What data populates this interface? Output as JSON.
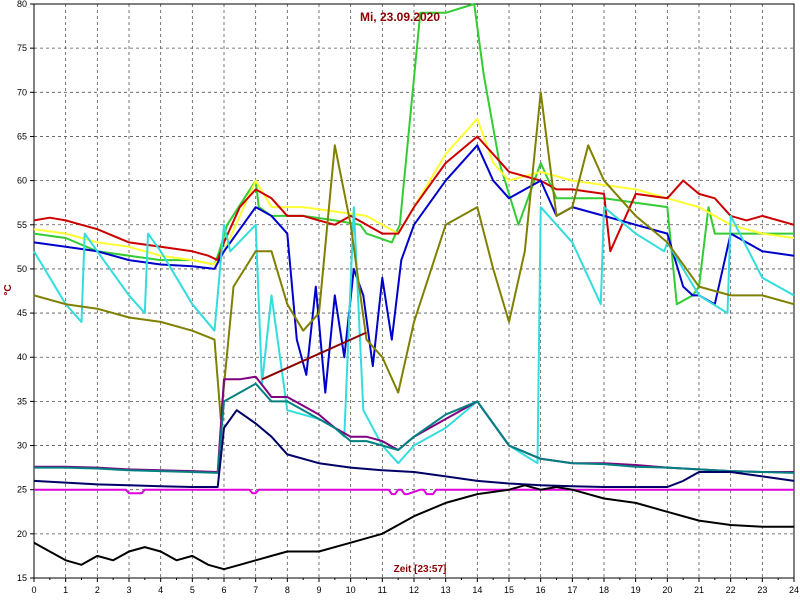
{
  "chart_data": {
    "type": "line",
    "title": "Mi, 23.09.2020",
    "xlabel": "Zeit [23:57]",
    "ylabel": "°C",
    "xlim": [
      0,
      24
    ],
    "ylim": [
      15,
      80
    ],
    "grid": true,
    "x_ticks": [
      "0",
      "1",
      "2",
      "3",
      "4",
      "5",
      "6",
      "7",
      "8",
      "9",
      "10",
      "11",
      "12",
      "13",
      "14",
      "15",
      "16",
      "17",
      "18",
      "19",
      "20",
      "21",
      "22",
      "23",
      "24"
    ],
    "y_ticks": [
      "15",
      "20",
      "25",
      "30",
      "35",
      "40",
      "45",
      "50",
      "55",
      "60",
      "65",
      "70",
      "75",
      "80"
    ],
    "colors": {
      "green": "#33cc33",
      "yellow": "#ffff33",
      "red": "#cc0000",
      "blue": "#0000cc",
      "cyan": "#33dddd",
      "olive": "#808000",
      "purple": "#800080",
      "teal": "#008080",
      "navy": "#000066",
      "magenta": "#dd00dd",
      "black": "#000000",
      "darkred": "#8b0000"
    },
    "series": [
      {
        "color": "#33cc33",
        "x": [
          0,
          1,
          2,
          3,
          4,
          5,
          5.7,
          5.85,
          6.1,
          7.0,
          7.1,
          7.5,
          8.5,
          9.5,
          10.3,
          10.5,
          11.3,
          11.55,
          12.2,
          13,
          13.9,
          14.2,
          14.7,
          15.3,
          16,
          16.5,
          17,
          18,
          19,
          20,
          20.3,
          20.8,
          21,
          21.3,
          21.5,
          22,
          23,
          24
        ],
        "y": [
          54,
          53.5,
          52,
          51.5,
          51,
          51,
          50.5,
          52,
          55,
          60,
          57,
          56,
          56,
          55.5,
          55,
          54,
          53,
          55,
          79,
          79,
          80,
          72,
          62,
          55,
          62,
          58,
          58,
          58,
          57.5,
          57,
          46,
          47,
          48,
          57,
          54,
          54,
          54,
          54
        ]
      },
      {
        "color": "#ffff33",
        "x": [
          0,
          1,
          2,
          3,
          4,
          5,
          5.7,
          6,
          7,
          7.5,
          8.5,
          9.5,
          10.5,
          11,
          11.5,
          12,
          13,
          14,
          14.5,
          15,
          16,
          17,
          18,
          19,
          20,
          21,
          22,
          23,
          24
        ],
        "y": [
          54.5,
          54,
          53,
          52.5,
          51.5,
          51,
          50.5,
          52,
          60,
          57,
          57,
          56.5,
          56,
          55,
          54,
          57,
          63,
          67,
          62,
          60,
          61,
          60,
          59.5,
          59,
          58,
          57,
          55,
          54,
          53.5
        ]
      },
      {
        "color": "#cc0000",
        "x": [
          0,
          0.5,
          1,
          1.5,
          2,
          3,
          4,
          5,
          5.5,
          5.8,
          6,
          6.5,
          7,
          7.5,
          8,
          8.5,
          9,
          9.5,
          10,
          10.5,
          11,
          11.5,
          12,
          13,
          14,
          15,
          16,
          16.5,
          17,
          18,
          18.2,
          19,
          20,
          20.5,
          21,
          21.5,
          22,
          22.5,
          23,
          24
        ],
        "y": [
          55.5,
          55.8,
          55.5,
          55,
          54.5,
          53,
          52.5,
          52,
          51.5,
          51,
          53,
          57,
          59,
          58,
          56,
          56,
          55.5,
          55,
          56,
          55,
          54,
          54,
          57,
          62,
          65,
          61,
          60,
          59,
          59,
          58.5,
          52,
          58.5,
          58,
          60,
          58.5,
          58,
          56,
          55.5,
          56,
          55
        ]
      },
      {
        "color": "#0000cc",
        "x": [
          0,
          1,
          2,
          3,
          4,
          5,
          5.7,
          6,
          7,
          7.5,
          8,
          8.3,
          8.6,
          8.9,
          9.2,
          9.5,
          9.8,
          10.1,
          10.4,
          10.7,
          11,
          11.3,
          11.6,
          12,
          13,
          14,
          14.5,
          15,
          16,
          16.5,
          17,
          18,
          19,
          20,
          20.5,
          20.8,
          21,
          21.5,
          22,
          22.5,
          23,
          24
        ],
        "y": [
          53,
          52.5,
          52,
          51,
          50.5,
          50.3,
          50,
          52,
          57,
          56,
          54,
          42,
          38,
          48,
          36,
          47,
          40,
          50,
          47,
          39,
          49,
          42,
          51,
          55,
          60,
          64,
          60,
          58,
          60,
          56,
          57,
          56,
          55,
          54,
          48,
          47,
          47,
          46,
          54,
          53,
          52,
          51.5
        ]
      },
      {
        "color": "#33dddd",
        "x": [
          0,
          1,
          1.5,
          1.6,
          2,
          3,
          3.5,
          3.6,
          4,
          5,
          5.7,
          6,
          6.2,
          7,
          7.2,
          7.5,
          8,
          9,
          9.5,
          9.8,
          10.1,
          10.4,
          11,
          11.5,
          12,
          13,
          14,
          15,
          15.9,
          16,
          17,
          17.9,
          18,
          19,
          19.9,
          20,
          21,
          21.9,
          22,
          23,
          24
        ],
        "y": [
          52,
          46,
          44,
          54,
          52,
          47,
          45,
          54,
          52,
          46,
          43,
          55,
          52,
          55,
          37,
          47,
          34,
          33,
          32,
          31,
          57,
          34,
          30,
          28,
          30,
          32,
          35,
          30,
          28,
          57,
          53,
          46,
          57,
          54,
          52,
          53,
          47,
          45,
          56,
          49,
          47
        ]
      },
      {
        "color": "#808000",
        "x": [
          0,
          1,
          2,
          3,
          4,
          5,
          5.7,
          5.9,
          6.3,
          7,
          7.5,
          8,
          8.5,
          9,
          9.5,
          10,
          10.5,
          11,
          11.5,
          12,
          13,
          14,
          14.5,
          15,
          15.5,
          16,
          16.5,
          17,
          17.5,
          18,
          19,
          20,
          21,
          22,
          23,
          24
        ],
        "y": [
          47,
          46,
          45.5,
          44.5,
          44,
          43,
          42,
          33,
          48,
          52,
          52,
          46,
          43,
          45,
          64,
          55,
          42,
          40,
          36,
          44,
          55,
          57,
          50,
          44,
          52,
          70,
          56,
          57,
          64,
          60,
          56,
          53,
          48,
          47,
          47,
          46
        ]
      },
      {
        "color": "#800080",
        "x": [
          0,
          1,
          2,
          3,
          4,
          5,
          5.8,
          6,
          6.5,
          7,
          7.5,
          8,
          8.5,
          9,
          9.5,
          10,
          10.5,
          11,
          11.5,
          12,
          13,
          14,
          15,
          16,
          17,
          18,
          19,
          20,
          21,
          22,
          23,
          24
        ],
        "y": [
          27.6,
          27.6,
          27.5,
          27.3,
          27.2,
          27.1,
          27.0,
          37.5,
          37.5,
          37.8,
          35.5,
          35.5,
          34.5,
          33.5,
          32.0,
          31.0,
          31.0,
          30.5,
          29.5,
          31.0,
          33.0,
          35.0,
          30.0,
          28.5,
          28.0,
          28.0,
          27.8,
          27.5,
          27.3,
          27.1,
          27.0,
          27.0
        ]
      },
      {
        "color": "#008080",
        "x": [
          0,
          1,
          2,
          3,
          4,
          5,
          5.8,
          6,
          6.5,
          7,
          7.5,
          8,
          8.5,
          9,
          9.5,
          10,
          10.5,
          11,
          11.5,
          12,
          13,
          14,
          15,
          16,
          17,
          18,
          19,
          20,
          21,
          22,
          23,
          24
        ],
        "y": [
          27.5,
          27.5,
          27.4,
          27.2,
          27.1,
          27.0,
          26.9,
          35,
          36,
          37,
          35,
          35,
          34,
          33,
          32,
          30.5,
          30.5,
          30,
          29.5,
          31,
          33.5,
          35,
          30,
          28.5,
          28,
          27.9,
          27.6,
          27.5,
          27.3,
          27.1,
          27,
          26.9
        ]
      },
      {
        "color": "#000066",
        "x": [
          0,
          1,
          2,
          3,
          4,
          5,
          5.8,
          6,
          6.4,
          7,
          7.5,
          8,
          9,
          10,
          11,
          12,
          13,
          14,
          15,
          16,
          17,
          18,
          19,
          20,
          20.5,
          21,
          22,
          23,
          24
        ],
        "y": [
          26,
          25.8,
          25.6,
          25.5,
          25.4,
          25.3,
          25.3,
          32,
          34,
          32.5,
          31,
          29,
          28,
          27.5,
          27.2,
          27,
          26.5,
          26,
          25.7,
          25.5,
          25.4,
          25.3,
          25.3,
          25.3,
          26,
          27,
          27,
          26.5,
          26
        ]
      },
      {
        "color": "#dd00dd",
        "x": [
          0,
          2.9,
          3.0,
          3.4,
          3.5,
          6.8,
          6.9,
          7.0,
          7.1,
          11.2,
          11.3,
          11.4,
          11.5,
          11.6,
          11.7,
          11.8,
          12.2,
          12.3,
          12.4,
          12.6,
          12.7,
          12.8,
          13,
          24
        ],
        "y": [
          25,
          25,
          24.6,
          24.6,
          25,
          25,
          24.6,
          24.6,
          25,
          25,
          24.5,
          24.5,
          25,
          25,
          24.5,
          24.5,
          25,
          25,
          24.5,
          24.5,
          25,
          25,
          25,
          25
        ]
      },
      {
        "color": "#000000",
        "x": [
          0,
          0.5,
          1,
          1.5,
          2,
          2.5,
          3,
          3.5,
          4,
          4.5,
          5,
          5.5,
          6,
          6.5,
          7,
          7.5,
          8,
          9,
          10,
          11,
          12,
          13,
          14,
          15,
          15.5,
          16,
          16.5,
          17,
          18,
          19,
          20,
          21,
          22,
          23,
          24
        ],
        "y": [
          19,
          18,
          17,
          16.5,
          17.5,
          17,
          18,
          18.5,
          18,
          17,
          17.5,
          16.5,
          16,
          16.5,
          17,
          17.5,
          18,
          18,
          19,
          20,
          22,
          23.5,
          24.5,
          25,
          25.5,
          25,
          25.3,
          25,
          24,
          23.5,
          22.5,
          21.5,
          21,
          20.8,
          20.8
        ]
      },
      {
        "color": "#8b0000",
        "x": [
          7.2,
          10.5
        ],
        "y": [
          37.5,
          42.8
        ]
      }
    ]
  }
}
